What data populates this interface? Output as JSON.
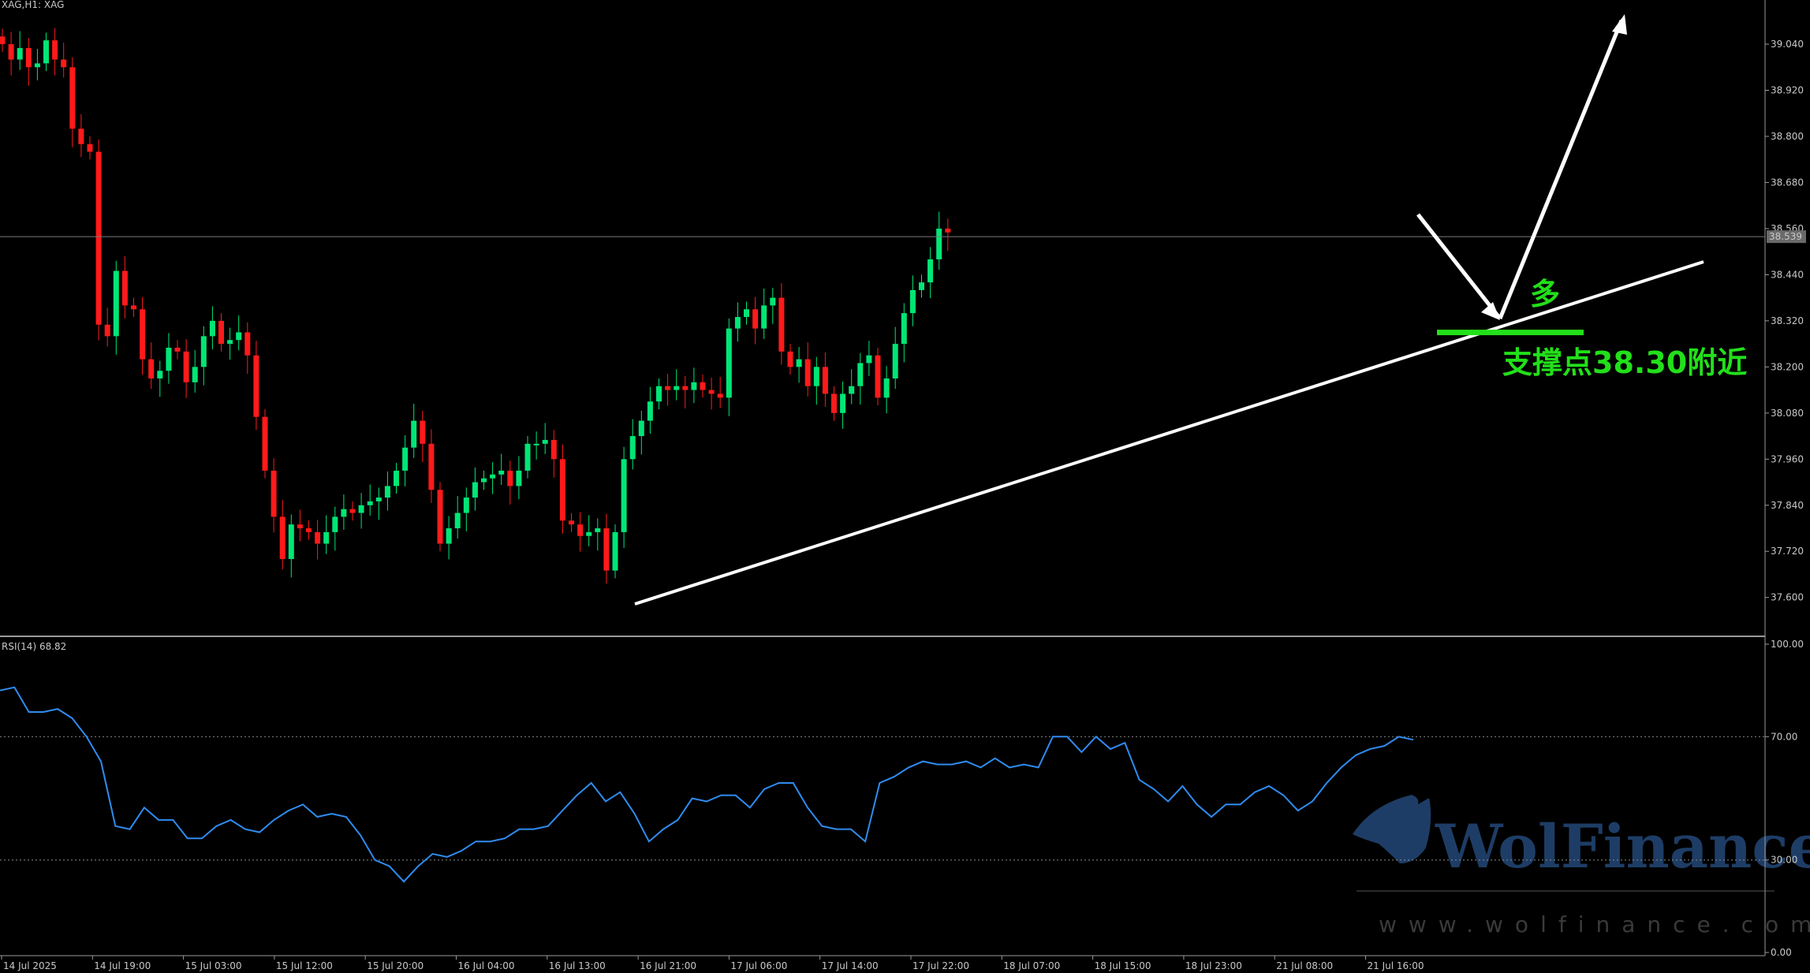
{
  "header": {
    "symbol": "XAG,H1:  XAG"
  },
  "colors": {
    "background": "#000000",
    "bull_candle": "#00e676",
    "bear_candle": "#ff1a1a",
    "rsi_line": "#2f8cf0",
    "support_marker": "#22e01a",
    "trendline": "#ffffff",
    "watermark": "#1e3d66"
  },
  "chart_data": [
    {
      "type": "candlestick",
      "title": "XAG,H1:  XAG",
      "ylim": [
        37.505,
        39.155
      ],
      "y_ticks": [
        "39.040",
        "38.920",
        "38.800",
        "38.680",
        "38.560",
        "38.440",
        "38.320",
        "38.200",
        "38.080",
        "37.960",
        "37.840",
        "37.720",
        "37.600"
      ],
      "x_ticks": [
        "14 Jul 2025",
        "14 Jul 19:00",
        "15 Jul 03:00",
        "15 Jul 12:00",
        "15 Jul 20:00",
        "16 Jul 04:00",
        "16 Jul 13:00",
        "16 Jul 21:00",
        "17 Jul 06:00",
        "17 Jul 14:00",
        "17 Jul 22:00",
        "18 Jul 07:00",
        "18 Jul 15:00",
        "18 Jul 23:00",
        "21 Jul 08:00",
        "21 Jul 16:00"
      ],
      "current_price": "38.539",
      "close_path": [
        39.04,
        39.0,
        39.03,
        38.98,
        38.99,
        39.05,
        39.0,
        38.98,
        38.82,
        38.78,
        38.76,
        38.31,
        38.28,
        38.45,
        38.36,
        38.35,
        38.22,
        38.17,
        38.19,
        38.25,
        38.24,
        38.16,
        38.2,
        38.28,
        38.32,
        38.26,
        38.27,
        38.29,
        38.23,
        38.07,
        37.93,
        37.81,
        37.7,
        37.79,
        37.78,
        37.77,
        37.74,
        37.77,
        37.81,
        37.83,
        37.82,
        37.84,
        37.85,
        37.86,
        37.89,
        37.93,
        37.99,
        38.06,
        38.0,
        37.88,
        37.74,
        37.78,
        37.82,
        37.86,
        37.9,
        37.91,
        37.92,
        37.93,
        37.89,
        37.93,
        38.0,
        38.0,
        38.01,
        37.96,
        37.8,
        37.79,
        37.76,
        37.77,
        37.78,
        37.67,
        37.77,
        37.96,
        38.02,
        38.06,
        38.11,
        38.15,
        38.14,
        38.15,
        38.14,
        38.16,
        38.14,
        38.13,
        38.12,
        38.3,
        38.33,
        38.35,
        38.3,
        38.36,
        38.38,
        38.24,
        38.2,
        38.22,
        38.15,
        38.2,
        38.13,
        38.08,
        38.13,
        38.15,
        38.21,
        38.23,
        38.12,
        38.17,
        38.26,
        38.34,
        38.4,
        38.42,
        38.48,
        38.56,
        38.55
      ],
      "annotations": {
        "long_label": "多",
        "support_label": "支撑点38.30附近",
        "support_level": 38.3
      }
    },
    {
      "type": "line",
      "title": "RSI(14) 68.82",
      "ylim": [
        0,
        100
      ],
      "y_ticks": [
        "100.00",
        "70.00",
        "30.00",
        "0.00"
      ],
      "levels": [
        70,
        30
      ],
      "values": [
        85,
        86,
        78,
        78,
        79,
        76,
        70,
        62,
        41,
        40,
        47,
        43,
        43,
        37,
        37,
        41,
        43,
        40,
        39,
        43,
        46,
        48,
        44,
        45,
        44,
        38,
        30,
        28,
        23,
        28,
        32,
        31,
        33,
        36,
        36,
        37,
        40,
        40,
        41,
        46,
        51,
        55,
        49,
        52,
        45,
        36,
        40,
        43,
        50,
        49,
        51,
        51,
        47,
        53,
        55,
        55,
        47,
        41,
        40,
        40,
        36,
        55,
        57,
        60,
        62,
        61,
        61,
        62,
        60,
        63,
        60,
        61,
        60,
        70,
        70,
        65,
        70,
        66,
        68,
        56,
        53,
        49,
        54,
        48,
        44,
        48,
        48,
        52,
        54,
        51,
        46,
        49,
        55,
        60,
        64,
        66,
        67,
        70,
        69
      ]
    }
  ],
  "watermark": {
    "brand": "WolFinance",
    "url": "www.wolfinance.com"
  }
}
